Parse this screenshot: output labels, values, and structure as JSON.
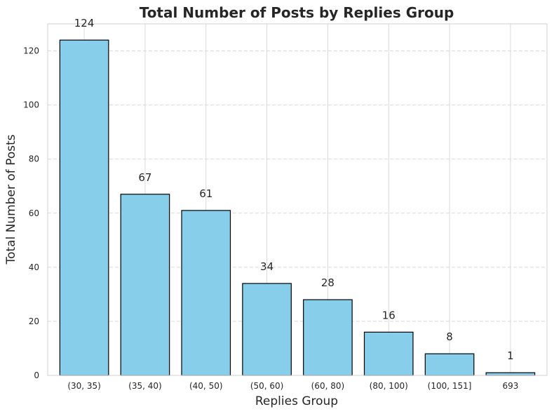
{
  "chart_data": {
    "type": "bar",
    "title": "Total Number of Posts by Replies Group",
    "xlabel": "Replies Group",
    "ylabel": "Total Number of Posts",
    "categories": [
      "(30, 35)",
      "(35, 40)",
      "(40, 50)",
      "(50, 60)",
      "(60, 80)",
      "(80, 100)",
      "(100, 151]",
      "693"
    ],
    "values": [
      124,
      67,
      61,
      34,
      28,
      16,
      8,
      1
    ],
    "data_labels": [
      "124",
      "67",
      "61",
      "34",
      "28",
      "16",
      "8",
      "1"
    ],
    "ylim": [
      0,
      130
    ],
    "yticks": [
      0,
      20,
      40,
      60,
      80,
      100,
      120
    ],
    "ytick_labels": [
      "0",
      "20",
      "40",
      "60",
      "80",
      "100",
      "120"
    ],
    "bar_color": "#87CEEB",
    "edge_color": "#000000",
    "grid": true,
    "legend": "none"
  }
}
